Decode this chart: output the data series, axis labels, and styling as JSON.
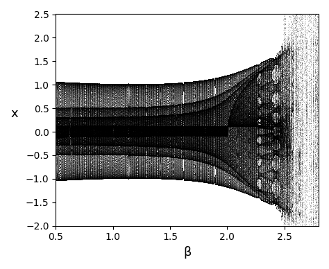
{
  "beta_min": 0.5,
  "beta_max": 2.8,
  "beta_steps": 500,
  "ylim": [
    -2.0,
    2.5
  ],
  "xlabel": "β",
  "ylabel": "x",
  "transient": 500,
  "record": 300,
  "dot_size": 0.15,
  "dot_color": "black",
  "dot_alpha": 0.2,
  "figure_bg": "white",
  "axes_bg": "white",
  "tick_label_size": 10,
  "axis_label_size": 13,
  "xticks": [
    0.5,
    1.0,
    1.5,
    2.0,
    2.5
  ],
  "yticks": [
    -2.0,
    -1.5,
    -1.0,
    -0.5,
    0.0,
    0.5,
    1.0,
    1.5,
    2.0,
    2.5
  ]
}
